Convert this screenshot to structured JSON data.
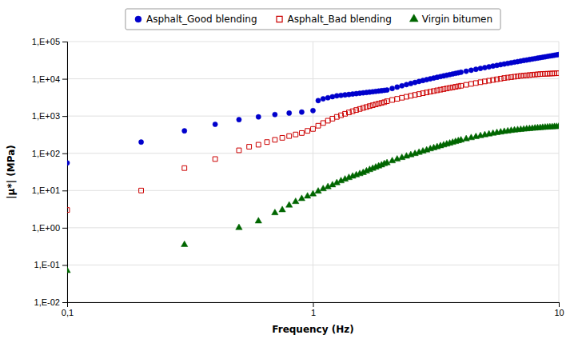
{
  "chart_data": {
    "type": "scatter",
    "xlabel": "Frequency (Hz)",
    "ylabel": "|µ*| (MPa)",
    "log": true,
    "grid": true,
    "legend": "top",
    "xlim": [
      0.1,
      10
    ],
    "ylim": [
      0.01,
      100000
    ],
    "xticks": [
      {
        "value": 0.1,
        "label": "0,1"
      },
      1,
      10
    ],
    "yticks": [
      {
        "value": 0.01,
        "label": "1,E-02"
      },
      {
        "value": 0.1,
        "label": "1,E-01"
      },
      {
        "value": 1,
        "label": "1,E+00"
      },
      {
        "value": 10,
        "label": "1,E+01"
      },
      {
        "value": 100,
        "label": "1,E+02"
      },
      {
        "value": 1000,
        "label": "1,E+03"
      },
      {
        "value": 10000,
        "label": "1,E+04"
      },
      {
        "value": 100000,
        "label": "1,E+05"
      }
    ],
    "series": [
      {
        "name": "Asphalt_Good blending",
        "color": "#0000CC",
        "marker": "circle",
        "x": [
          0.1,
          0.2,
          0.3,
          0.4,
          0.5,
          0.6,
          0.7,
          0.8,
          0.9,
          1.0,
          1.05,
          1.1,
          1.15,
          1.2,
          1.25,
          1.3,
          1.35,
          1.4,
          1.45,
          1.5,
          1.55,
          1.6,
          1.65,
          1.7,
          1.75,
          1.8,
          1.85,
          1.9,
          1.95,
          2.0,
          2.1,
          2.2,
          2.3,
          2.4,
          2.5,
          2.6,
          2.7,
          2.8,
          2.9,
          3.0,
          3.1,
          3.2,
          3.3,
          3.4,
          3.5,
          3.6,
          3.7,
          3.8,
          3.9,
          4.0,
          4.2,
          4.4,
          4.6,
          4.8,
          5.0,
          5.2,
          5.4,
          5.6,
          5.8,
          6.0,
          6.2,
          6.4,
          6.6,
          6.8,
          7.0,
          7.2,
          7.4,
          7.6,
          7.8,
          8.0,
          8.2,
          8.4,
          8.6,
          8.8,
          9.0,
          9.2,
          9.4,
          9.6,
          9.8,
          10.0
        ],
        "values": [
          55,
          200,
          400,
          600,
          800,
          950,
          1100,
          1200,
          1280,
          1400,
          2600,
          2900,
          3100,
          3300,
          3500,
          3600,
          3700,
          3800,
          3900,
          4000,
          4100,
          4200,
          4300,
          4400,
          4500,
          4600,
          4700,
          4800,
          4900,
          5000,
          5500,
          6000,
          6500,
          7000,
          7500,
          8000,
          8500,
          9000,
          9500,
          10000,
          10500,
          11000,
          11500,
          12000,
          12500,
          13000,
          13500,
          14000,
          14500,
          15000,
          16000,
          17000,
          18000,
          19000,
          20000,
          21000,
          22000,
          23000,
          24000,
          25000,
          26000,
          27000,
          28000,
          29000,
          30000,
          31000,
          32000,
          33000,
          34000,
          35000,
          36000,
          37000,
          38000,
          39000,
          40000,
          41000,
          42000,
          43000,
          44000,
          45000
        ]
      },
      {
        "name": "Asphalt_Bad blending",
        "color": "#CC0000",
        "marker": "square-open",
        "x": [
          0.1,
          0.2,
          0.3,
          0.4,
          0.5,
          0.55,
          0.6,
          0.65,
          0.7,
          0.75,
          0.8,
          0.85,
          0.9,
          0.95,
          1.0,
          1.05,
          1.1,
          1.15,
          1.2,
          1.25,
          1.3,
          1.35,
          1.4,
          1.45,
          1.5,
          1.55,
          1.6,
          1.65,
          1.7,
          1.75,
          1.8,
          1.85,
          1.9,
          1.95,
          2.0,
          2.1,
          2.2,
          2.3,
          2.4,
          2.5,
          2.6,
          2.7,
          2.8,
          2.9,
          3.0,
          3.1,
          3.2,
          3.3,
          3.4,
          3.5,
          3.6,
          3.7,
          3.8,
          3.9,
          4.0,
          4.2,
          4.4,
          4.6,
          4.8,
          5.0,
          5.2,
          5.4,
          5.6,
          5.8,
          6.0,
          6.2,
          6.4,
          6.6,
          6.8,
          7.0,
          7.2,
          7.4,
          7.6,
          7.8,
          8.0,
          8.2,
          8.4,
          8.6,
          8.8,
          9.0,
          9.2,
          9.4,
          9.6,
          9.8,
          10.0
        ],
        "values": [
          3.0,
          10,
          40,
          70,
          120,
          150,
          170,
          200,
          230,
          260,
          290,
          320,
          350,
          400,
          450,
          550,
          650,
          750,
          850,
          950,
          1050,
          1150,
          1250,
          1350,
          1450,
          1550,
          1650,
          1750,
          1850,
          1950,
          2050,
          2150,
          2250,
          2350,
          2500,
          2700,
          2900,
          3100,
          3300,
          3500,
          3700,
          3900,
          4100,
          4300,
          4500,
          4700,
          4900,
          5100,
          5300,
          5500,
          5700,
          5900,
          6100,
          6300,
          6500,
          6900,
          7300,
          7700,
          8100,
          8500,
          8900,
          9300,
          9700,
          10100,
          10500,
          10800,
          11100,
          11400,
          11700,
          12000,
          12200,
          12400,
          12600,
          12800,
          13000,
          13200,
          13400,
          13500,
          13600,
          13700,
          13800,
          13900,
          14000,
          14100,
          14200
        ]
      },
      {
        "name": "Virgin bitumen",
        "color": "#006600",
        "marker": "triangle",
        "x": [
          0.1,
          0.3,
          0.5,
          0.6,
          0.7,
          0.75,
          0.8,
          0.85,
          0.9,
          0.95,
          1.0,
          1.05,
          1.1,
          1.15,
          1.2,
          1.25,
          1.3,
          1.35,
          1.4,
          1.45,
          1.5,
          1.55,
          1.6,
          1.65,
          1.7,
          1.75,
          1.8,
          1.85,
          1.9,
          1.95,
          2.0,
          2.1,
          2.2,
          2.3,
          2.4,
          2.5,
          2.6,
          2.7,
          2.8,
          2.9,
          3.0,
          3.1,
          3.2,
          3.3,
          3.4,
          3.5,
          3.6,
          3.7,
          3.8,
          3.9,
          4.0,
          4.2,
          4.4,
          4.6,
          4.8,
          5.0,
          5.2,
          5.4,
          5.6,
          5.8,
          6.0,
          6.2,
          6.4,
          6.6,
          6.8,
          7.0,
          7.2,
          7.4,
          7.6,
          7.8,
          8.0,
          8.2,
          8.4,
          8.6,
          8.8,
          9.0,
          9.2,
          9.4,
          9.6,
          9.8,
          10.0
        ],
        "values": [
          0.07,
          0.35,
          1.0,
          1.5,
          2.5,
          3.0,
          4.0,
          5.0,
          6.0,
          7.0,
          8.0,
          9.5,
          11,
          12.5,
          14,
          16,
          18,
          20,
          22,
          24,
          26,
          28,
          30,
          33,
          36,
          39,
          42,
          45,
          48,
          52,
          55,
          62,
          69,
          76,
          83,
          90,
          97,
          105,
          113,
          121,
          130,
          139,
          148,
          157,
          166,
          175,
          185,
          195,
          205,
          215,
          225,
          242,
          259,
          276,
          293,
          310,
          325,
          340,
          355,
          368,
          381,
          393,
          405,
          415,
          425,
          433,
          441,
          449,
          456,
          463,
          470,
          477,
          484,
          490,
          496,
          500,
          505,
          510,
          515,
          518,
          521
        ]
      }
    ]
  }
}
